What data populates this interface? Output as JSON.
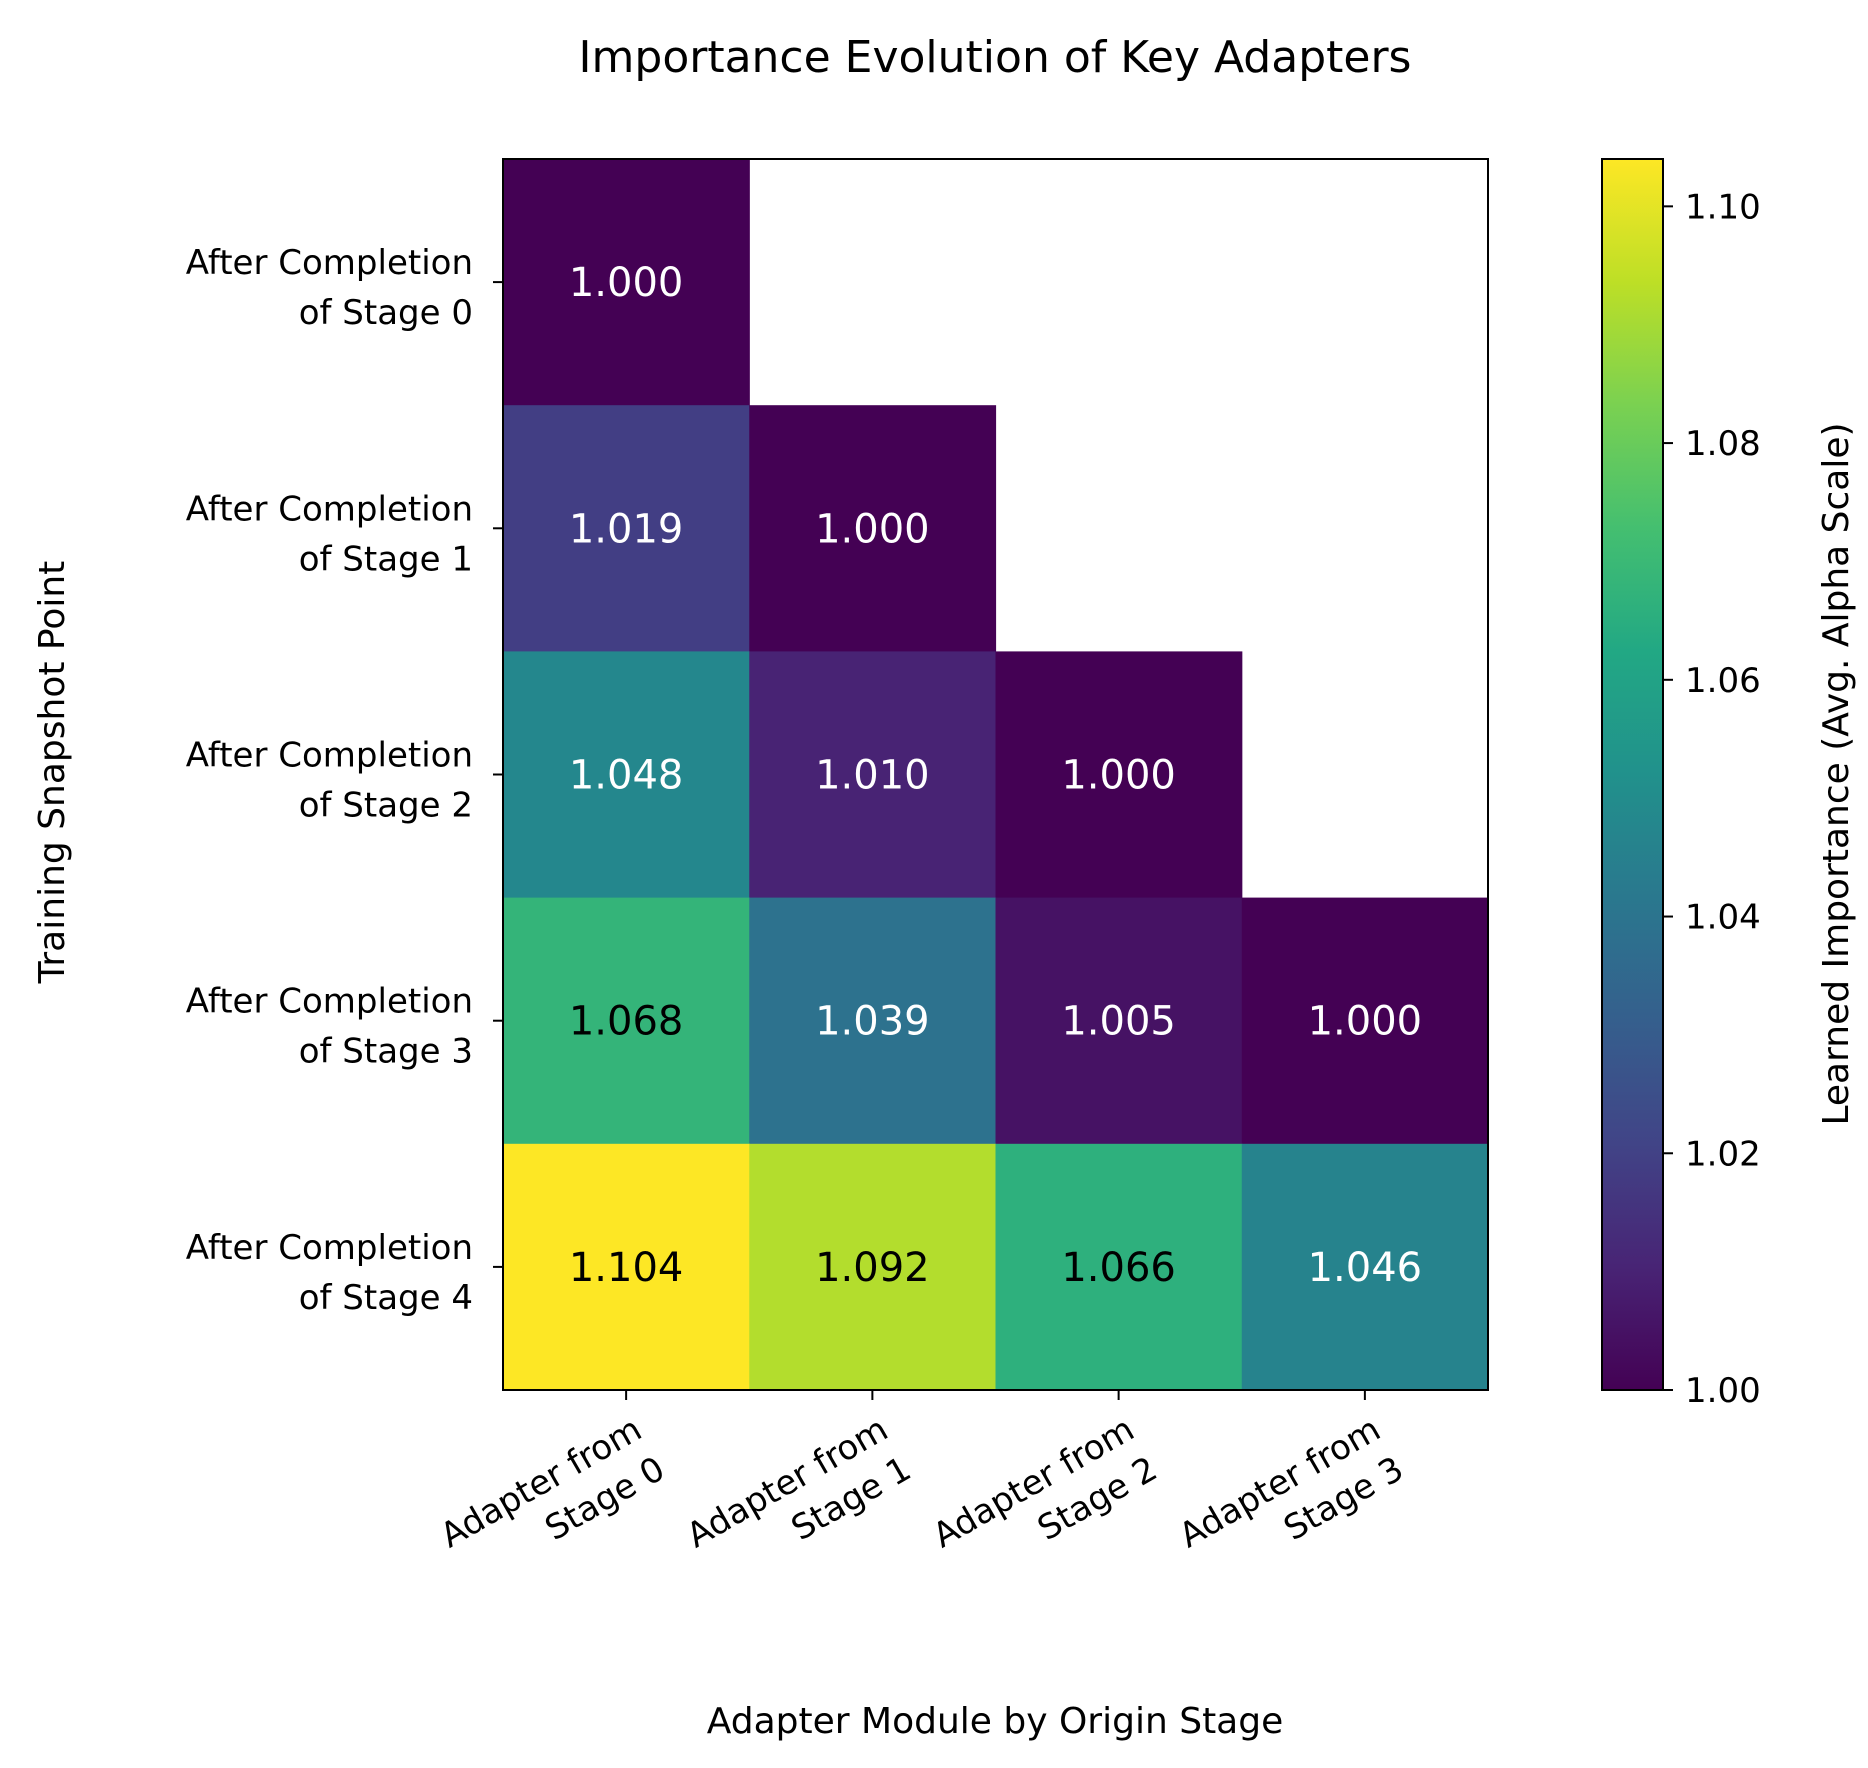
{
  "chart_data": {
    "type": "heatmap",
    "title": "Importance Evolution of Key Adapters",
    "xlabel": "Adapter Module by Origin Stage",
    "ylabel": "Training Snapshot Point",
    "x_categories": [
      [
        "Adapter from",
        "Stage 0"
      ],
      [
        "Adapter from",
        "Stage 1"
      ],
      [
        "Adapter from",
        "Stage 2"
      ],
      [
        "Adapter from",
        "Stage 3"
      ]
    ],
    "y_categories": [
      [
        "After Completion",
        "of Stage 0"
      ],
      [
        "After Completion",
        "of Stage 1"
      ],
      [
        "After Completion",
        "of Stage 2"
      ],
      [
        "After Completion",
        "of Stage 3"
      ],
      [
        "After Completion",
        "of Stage 4"
      ]
    ],
    "values": [
      [
        1.0,
        null,
        null,
        null
      ],
      [
        1.019,
        1.0,
        null,
        null
      ],
      [
        1.048,
        1.01,
        1.0,
        null
      ],
      [
        1.068,
        1.039,
        1.005,
        1.0
      ],
      [
        1.104,
        1.092,
        1.066,
        1.046
      ]
    ],
    "value_labels": [
      [
        "1.000",
        null,
        null,
        null
      ],
      [
        "1.019",
        "1.000",
        null,
        null
      ],
      [
        "1.048",
        "1.010",
        "1.000",
        null
      ],
      [
        "1.068",
        "1.039",
        "1.005",
        "1.000"
      ],
      [
        "1.104",
        "1.092",
        "1.066",
        "1.046"
      ]
    ],
    "colormap": "viridis",
    "colorbar": {
      "label": "Learned Importance (Avg. Alpha Scale)",
      "range": [
        1.0,
        1.104
      ],
      "ticks": [
        1.0,
        1.02,
        1.04,
        1.06,
        1.08,
        1.1
      ],
      "tick_labels": [
        "1.00",
        "1.02",
        "1.04",
        "1.06",
        "1.08",
        "1.10"
      ]
    },
    "grid": false
  }
}
